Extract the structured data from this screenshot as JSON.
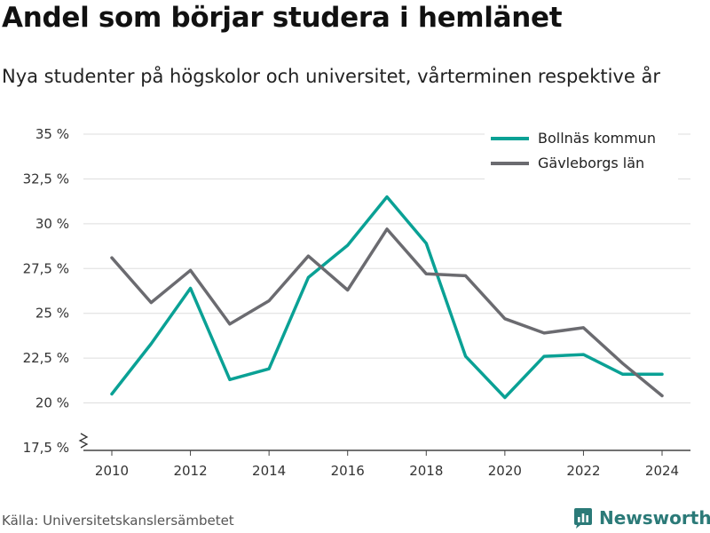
{
  "header": {
    "title": "Andel som börjar studera i hemlänet",
    "subtitle": "Nya studenter på högskolor och universitet, vårterminen respektive år"
  },
  "footer": {
    "source": "Källa: Universitetskanslersämbetet",
    "brand": "Newsworthy"
  },
  "colors": {
    "bollnas": "#0aa195",
    "gavleborg": "#6b6b70",
    "grid": "#dddddd",
    "brand": "#2b7a78"
  },
  "chart_data": {
    "type": "line",
    "x": [
      2010,
      2011,
      2012,
      2013,
      2014,
      2015,
      2016,
      2017,
      2018,
      2019,
      2020,
      2021,
      2022,
      2023,
      2024
    ],
    "xticks": [
      2010,
      2012,
      2014,
      2016,
      2018,
      2020,
      2022,
      2024
    ],
    "ylim": [
      17.5,
      35
    ],
    "yticks": [
      17.5,
      20,
      22.5,
      25,
      27.5,
      30,
      32.5,
      35
    ],
    "ytick_labels": [
      "17,5 %",
      "20 %",
      "22,5 %",
      "25 %",
      "27,5 %",
      "30 %",
      "32,5 %",
      "35 %"
    ],
    "axis_break": true,
    "grid": true,
    "legend_position": "top-right",
    "series": [
      {
        "name": "Bollnäs kommun",
        "color": "#0aa195",
        "values": [
          20.5,
          23.3,
          26.4,
          21.3,
          21.9,
          27.0,
          28.8,
          31.5,
          28.9,
          22.6,
          20.3,
          22.6,
          22.7,
          21.6,
          21.6
        ]
      },
      {
        "name": "Gävleborgs län",
        "color": "#6b6b70",
        "values": [
          28.1,
          25.6,
          27.4,
          24.4,
          25.7,
          28.2,
          26.3,
          29.7,
          27.2,
          27.1,
          24.7,
          23.9,
          24.2,
          22.2,
          20.4
        ]
      }
    ]
  }
}
